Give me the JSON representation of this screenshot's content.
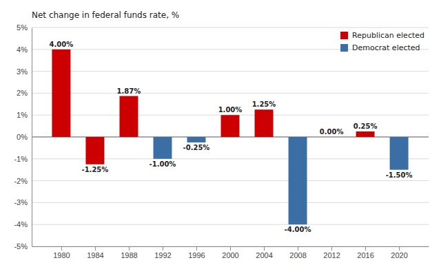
{
  "chart_data": {
    "type": "bar",
    "ylabel": "Net change in federal funds rate, %",
    "x": [
      1980,
      1984,
      1988,
      1992,
      1996,
      2000,
      2004,
      2008,
      2012,
      2016,
      2020
    ],
    "series": [
      {
        "name": "Republican elected",
        "color": "#cc0000",
        "values": [
          4.0,
          -1.25,
          1.87,
          null,
          null,
          1.0,
          1.25,
          null,
          null,
          0.25,
          null
        ],
        "value_labels": [
          "4.00%",
          "-1.25%",
          "1.87%",
          null,
          null,
          "1.00%",
          "1.25%",
          null,
          null,
          "0.25%",
          null
        ]
      },
      {
        "name": "Democrat elected",
        "color": "#3b6ea5",
        "values": [
          null,
          null,
          null,
          -1.0,
          -0.25,
          null,
          null,
          -4.0,
          0.0,
          null,
          -1.5
        ],
        "value_labels": [
          null,
          null,
          null,
          "-1.00%",
          "-0.25%",
          null,
          null,
          "-4.00%",
          "0.00%",
          null,
          "-1.50%"
        ]
      }
    ],
    "xlim": [
      1976.5,
      2023.5
    ],
    "xticks": [
      1980,
      1984,
      1988,
      1992,
      1996,
      2000,
      2004,
      2008,
      2012,
      2016,
      2020
    ],
    "ylim": [
      -5,
      5
    ],
    "yticks": [
      {
        "value": -5,
        "label": "-5%"
      },
      {
        "value": -4,
        "label": "-4%"
      },
      {
        "value": -3,
        "label": "-3%"
      },
      {
        "value": -2,
        "label": "-2%"
      },
      {
        "value": -1,
        "label": "-1%"
      },
      {
        "value": 0,
        "label": "0%"
      },
      {
        "value": 1,
        "label": "1%"
      },
      {
        "value": 2,
        "label": "2%"
      },
      {
        "value": 3,
        "label": "3%"
      },
      {
        "value": 4,
        "label": "4%"
      },
      {
        "value": 5,
        "label": "5%"
      }
    ],
    "grid": true,
    "legend": "upper right",
    "data_labels": true
  }
}
